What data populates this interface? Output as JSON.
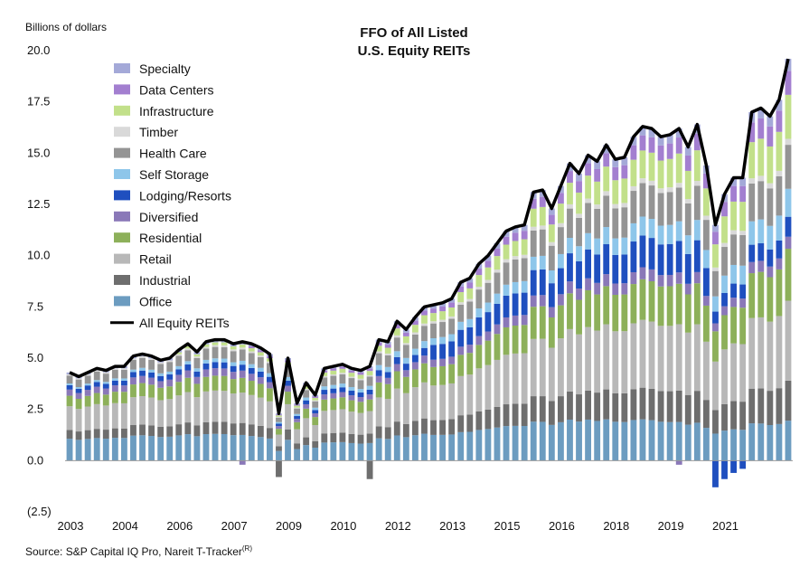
{
  "chart_data": {
    "type": "bar",
    "stacked": true,
    "title_lines": [
      "FFO of All Listed",
      "U.S. Equity REITs"
    ],
    "ylabel": "Billions of dollars",
    "ylim": [
      -2.5,
      20.0
    ],
    "yticks": [
      -2.5,
      0.0,
      2.5,
      5.0,
      7.5,
      10.0,
      12.5,
      15.0,
      17.5,
      20.0
    ],
    "ytick_labels": [
      "(2.5)",
      "0.0",
      "2.5",
      "5.0",
      "7.5",
      "10.0",
      "12.5",
      "15.0",
      "17.5",
      "20.0"
    ],
    "x_start_year": 2003,
    "quarters_per_year": 4,
    "xtick_labels": [
      "2003",
      "2004",
      "2006",
      "2007",
      "2009",
      "2010",
      "2012",
      "2013",
      "2015",
      "2016",
      "2018",
      "2019",
      "2021"
    ],
    "xtick_quarter_index": [
      0,
      6,
      12,
      18,
      24,
      30,
      36,
      42,
      48,
      54,
      60,
      66,
      72
    ],
    "series_order": [
      "Office",
      "Industrial",
      "Retail",
      "Residential",
      "Diversified",
      "Lodging/Resorts",
      "Self Storage",
      "Health Care",
      "Timber",
      "Infrastructure",
      "Data Centers",
      "Specialty"
    ],
    "series_colors": {
      "Office": "#6c9cc0",
      "Industrial": "#6e6e6e",
      "Retail": "#b8b8b8",
      "Residential": "#8db05a",
      "Diversified": "#8a78b8",
      "Lodging/Resorts": "#1f4fbf",
      "Self Storage": "#8ec6ea",
      "Health Care": "#949494",
      "Timber": "#d9d9d9",
      "Infrastructure": "#c2e08a",
      "Data Centers": "#a37fd0",
      "Specialty": "#a4a9d8"
    },
    "total_series_name": "All Equity REITs",
    "total_color": "#000000",
    "totals": [
      4.3,
      4.1,
      4.3,
      4.5,
      4.4,
      4.6,
      4.6,
      5.1,
      5.2,
      5.1,
      4.9,
      5.0,
      5.4,
      5.7,
      5.3,
      5.8,
      5.9,
      5.9,
      5.7,
      5.8,
      5.7,
      5.5,
      5.2,
      2.3,
      5.0,
      2.8,
      3.8,
      3.2,
      4.5,
      4.6,
      4.7,
      4.5,
      4.4,
      4.6,
      5.9,
      5.8,
      6.8,
      6.4,
      7.0,
      7.5,
      7.6,
      7.7,
      7.9,
      8.7,
      8.9,
      9.6,
      10.0,
      10.6,
      11.2,
      11.4,
      11.5,
      13.1,
      13.2,
      12.3,
      13.4,
      14.5,
      14.0,
      14.9,
      14.6,
      15.4,
      14.7,
      14.8,
      15.8,
      16.3,
      16.2,
      15.8,
      15.9,
      16.2,
      15.3,
      16.4,
      14.4,
      11.5,
      13.0,
      13.8,
      13.8,
      17.0,
      17.2,
      16.8,
      17.6,
      19.6
    ],
    "legend": [
      {
        "label": "Specialty",
        "key": "Specialty"
      },
      {
        "label": "Data Centers",
        "key": "Data Centers"
      },
      {
        "label": "Infrastructure",
        "key": "Infrastructure"
      },
      {
        "label": "Timber",
        "key": "Timber"
      },
      {
        "label": "Health Care",
        "key": "Health Care"
      },
      {
        "label": "Self Storage",
        "key": "Self Storage"
      },
      {
        "label": "Lodging/Resorts",
        "key": "Lodging/Resorts"
      },
      {
        "label": "Diversified",
        "key": "Diversified"
      },
      {
        "label": "Residential",
        "key": "Residential"
      },
      {
        "label": "Retail",
        "key": "Retail"
      },
      {
        "label": "Industrial",
        "key": "Industrial"
      },
      {
        "label": "Office",
        "key": "Office"
      },
      {
        "label": "All Equity REITs",
        "key": "All Equity REITs"
      }
    ],
    "negatives": [
      {
        "quarter": 19,
        "series": "Diversified",
        "value": -0.2
      },
      {
        "quarter": 23,
        "series": "Industrial",
        "value": -0.8
      },
      {
        "quarter": 33,
        "series": "Industrial",
        "value": -0.9
      },
      {
        "quarter": 67,
        "series": "Diversified",
        "value": -0.2
      },
      {
        "quarter": 71,
        "series": "Lodging/Resorts",
        "value": -1.3
      },
      {
        "quarter": 72,
        "series": "Lodging/Resorts",
        "value": -0.9
      },
      {
        "quarter": 73,
        "series": "Lodging/Resorts",
        "value": -0.6
      },
      {
        "quarter": 74,
        "series": "Lodging/Resorts",
        "value": -0.4
      }
    ]
  },
  "source": {
    "text": "Source: S&P Capital IQ Pro, Nareit T-Tracker",
    "mark": "(R)"
  }
}
